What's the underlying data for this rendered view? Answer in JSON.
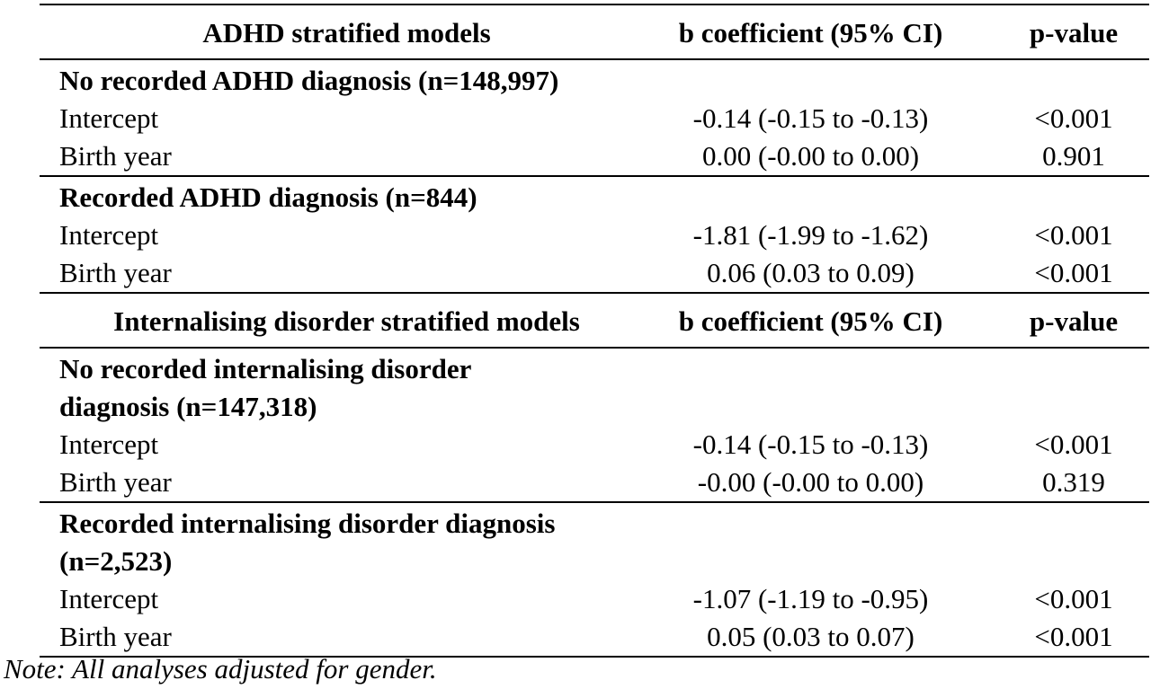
{
  "sections": [
    {
      "header": {
        "label": "ADHD stratified models",
        "coef": "b coefficient (95% CI)",
        "p": "p-value"
      },
      "groups": [
        {
          "title": "No recorded ADHD diagnosis (n=148,997)",
          "rows": [
            {
              "label": "Intercept",
              "coef": "-0.14 (-0.15 to -0.13)",
              "p": "<0.001"
            },
            {
              "label": "Birth year",
              "coef": "0.00 (-0.00 to 0.00)",
              "p": "0.901"
            }
          ]
        },
        {
          "title": "Recorded ADHD diagnosis (n=844)",
          "rows": [
            {
              "label": "Intercept",
              "coef": "-1.81 (-1.99 to -1.62)",
              "p": "<0.001"
            },
            {
              "label": "Birth year",
              "coef": "0.06 (0.03 to 0.09)",
              "p": "<0.001"
            }
          ]
        }
      ]
    },
    {
      "header": {
        "label": "Internalising disorder stratified models",
        "coef": "b coefficient (95% CI)",
        "p": "p-value"
      },
      "groups": [
        {
          "title_line1": "No recorded internalising disorder",
          "title_line2": "diagnosis (n=147,318)",
          "rows": [
            {
              "label": "Intercept",
              "coef": "-0.14 (-0.15 to -0.13)",
              "p": "<0.001"
            },
            {
              "label": "Birth year",
              "coef": "-0.00 (-0.00 to 0.00)",
              "p": "0.319"
            }
          ]
        },
        {
          "title_line1": "Recorded internalising disorder diagnosis",
          "title_line2": "(n=2,523)",
          "rows": [
            {
              "label": "Intercept",
              "coef": "-1.07 (-1.19 to -0.95)",
              "p": "<0.001"
            },
            {
              "label": "Birth year",
              "coef": "0.05 (0.03 to 0.07)",
              "p": "<0.001"
            }
          ]
        }
      ]
    }
  ],
  "note": "Note: All analyses adjusted for gender."
}
